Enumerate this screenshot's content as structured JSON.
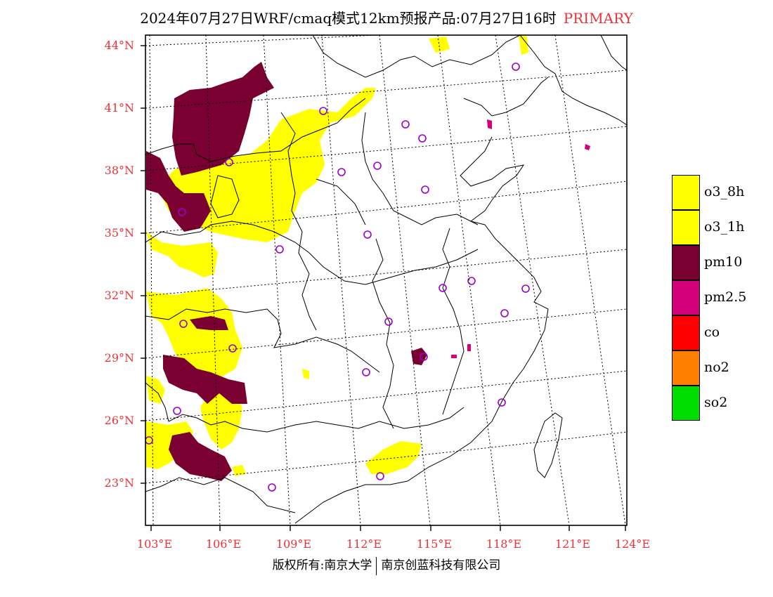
{
  "header": {
    "title": "2024年07月27日WRF/cmaq模式12km预报产品:07月27日16时",
    "tag": "PRIMARY"
  },
  "axes": {
    "lat_labels": [
      "44°N",
      "41°N",
      "38°N",
      "35°N",
      "32°N",
      "29°N",
      "26°N",
      "23°N"
    ],
    "lon_labels": [
      "103°E",
      "106°E",
      "109°E",
      "112°E",
      "115°E",
      "118°E",
      "121°E",
      "124°E"
    ]
  },
  "legend": [
    {
      "label": "o3_8h",
      "color": "#ffff00"
    },
    {
      "label": "o3_1h",
      "color": "#ffff00"
    },
    {
      "label": "pm10",
      "color": "#7a0031"
    },
    {
      "label": "pm2.5",
      "color": "#d4007a"
    },
    {
      "label": "co",
      "color": "#ff0000"
    },
    {
      "label": "no2",
      "color": "#ff8000"
    },
    {
      "label": "so2",
      "color": "#00dd00"
    }
  ],
  "footer": {
    "left": "版权所有:南京大学",
    "right": "南京创蓝科技有限公司"
  }
}
